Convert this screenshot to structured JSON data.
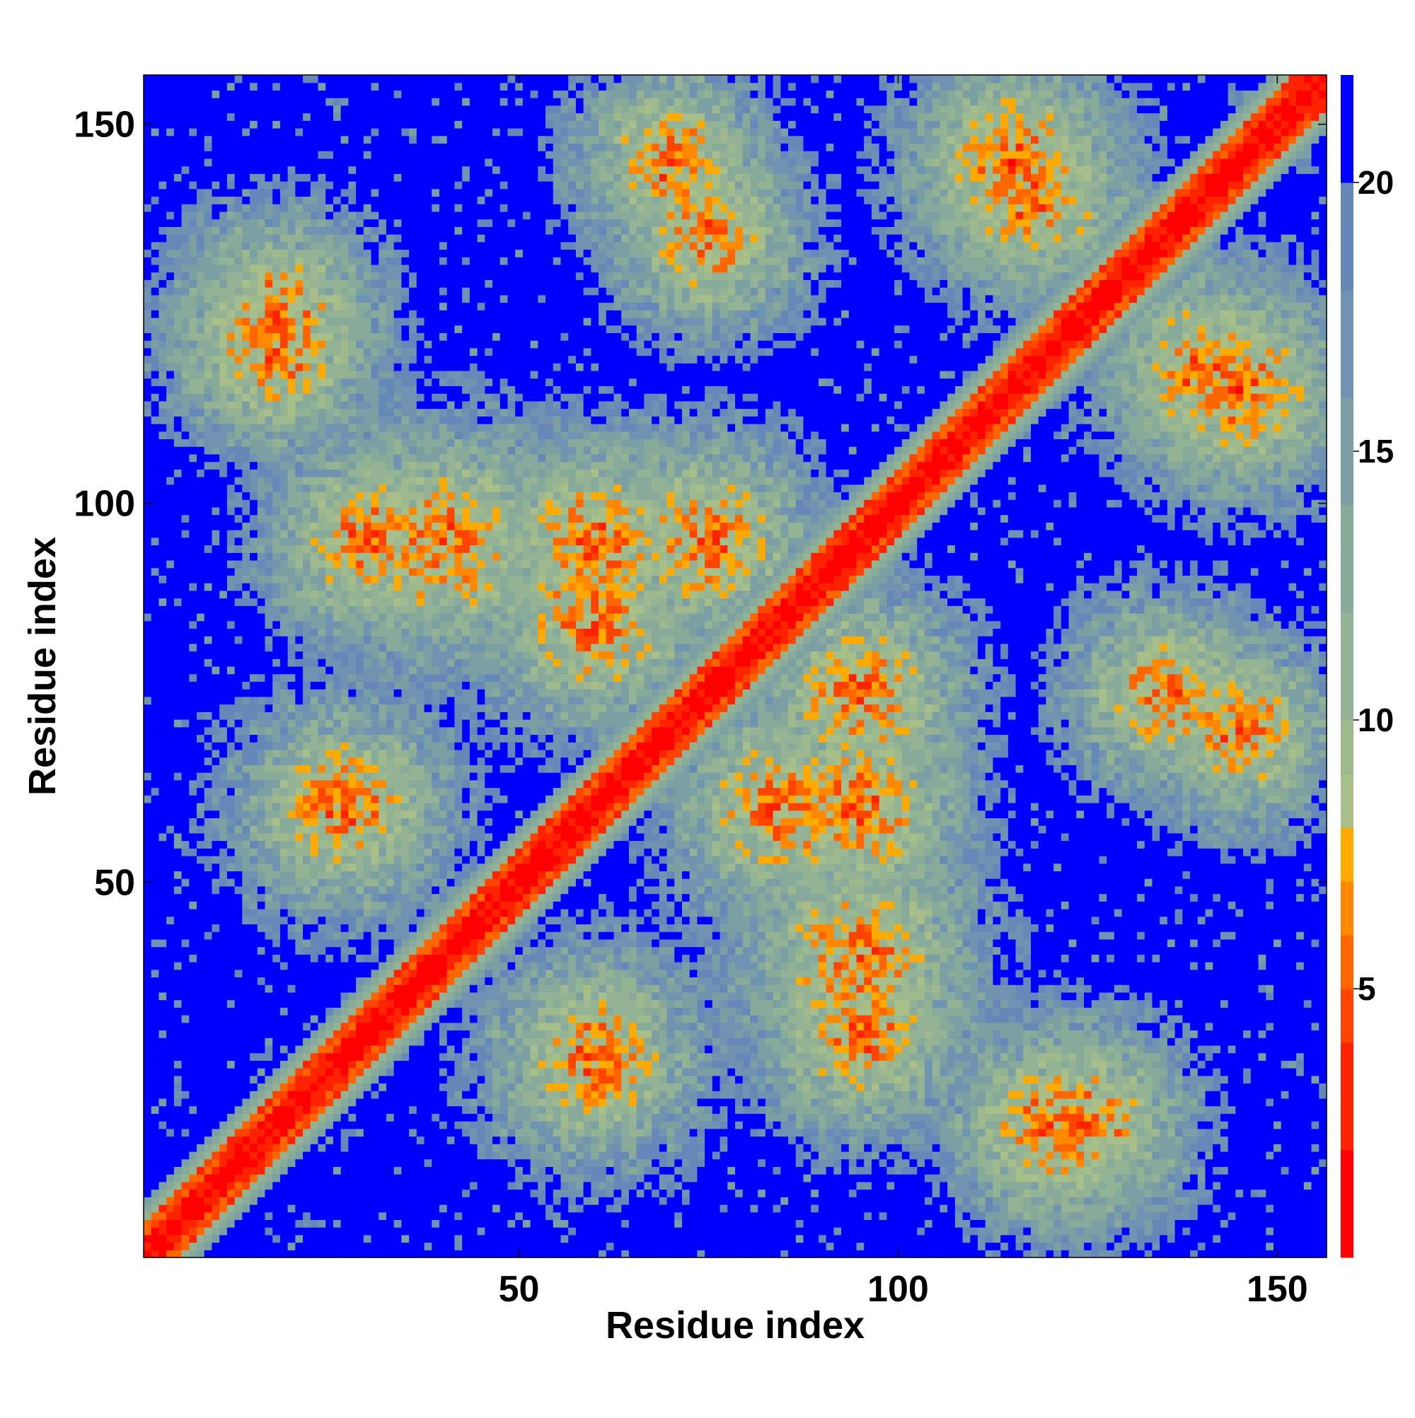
{
  "chart_data": {
    "type": "heatmap",
    "title": "",
    "xlabel": "Residue index",
    "ylabel": "Residue index",
    "n_residues": 156,
    "xlim": [
      0.5,
      156.5
    ],
    "ylim": [
      0.5,
      156.5
    ],
    "x_ticks": [
      50,
      100,
      150
    ],
    "y_ticks": [
      50,
      100,
      150
    ],
    "colorbar": {
      "ticks": [
        5,
        10,
        15,
        20
      ],
      "range": [
        0,
        22
      ],
      "levels": [
        {
          "upper": 2,
          "color": "#ff0000"
        },
        {
          "upper": 4,
          "color": "#ff2200"
        },
        {
          "upper": 5,
          "color": "#ff4400"
        },
        {
          "upper": 6,
          "color": "#ff6600"
        },
        {
          "upper": 7,
          "color": "#ff8800"
        },
        {
          "upper": 8,
          "color": "#ffaa00"
        },
        {
          "upper": 9,
          "color": "#a8bf8a"
        },
        {
          "upper": 10,
          "color": "#9fb98e"
        },
        {
          "upper": 12,
          "color": "#93b394"
        },
        {
          "upper": 14,
          "color": "#88aa9a"
        },
        {
          "upper": 16,
          "color": "#7c9fa4"
        },
        {
          "upper": 18,
          "color": "#6f93b0"
        },
        {
          "upper": 20,
          "color": "#6688b8"
        },
        {
          "upper": 22,
          "color": "#0000ff"
        }
      ]
    },
    "value_description_unit": "distance",
    "contact_regions": [
      {
        "center": [
          10,
          10
        ],
        "note": "diagonal band"
      },
      {
        "i": 18,
        "j": 120,
        "strength": 0.55
      },
      {
        "i": 27,
        "j": 60,
        "strength": 0.6
      },
      {
        "i": 40,
        "j": 95,
        "strength": 0.7
      },
      {
        "i": 60,
        "j": 95,
        "strength": 0.6
      },
      {
        "i": 75,
        "j": 95,
        "strength": 0.6
      },
      {
        "i": 85,
        "j": 60,
        "strength": 0.65
      },
      {
        "i": 95,
        "j": 30,
        "strength": 0.55
      },
      {
        "i": 125,
        "j": 18,
        "strength": 0.55
      },
      {
        "i": 115,
        "j": 145,
        "strength": 0.6
      },
      {
        "i": 140,
        "j": 118,
        "strength": 0.55
      },
      {
        "i": 135,
        "j": 75,
        "strength": 0.5
      },
      {
        "i": 70,
        "j": 145,
        "strength": 0.5
      }
    ]
  }
}
